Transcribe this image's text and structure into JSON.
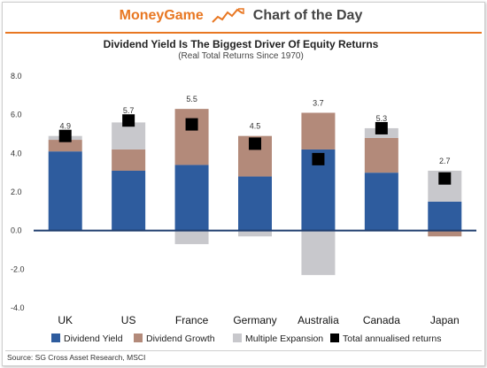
{
  "header": {
    "brand": "MoneyGame",
    "section": "Chart of the Day",
    "brand_color": "#e87722"
  },
  "source": "Source: SG Cross Asset Research, MSCI",
  "chart_data": {
    "type": "bar",
    "stacked": true,
    "title": "Dividend Yield Is The Biggest Driver Of Equity Returns",
    "subtitle": "(Real Total Returns Since 1970)",
    "categories": [
      "UK",
      "US",
      "France",
      "Germany",
      "Australia",
      "Canada",
      "Japan"
    ],
    "ylim": [
      -4.0,
      8.0
    ],
    "yticks": [
      "8.0",
      "6.0",
      "4.0",
      "2.0",
      "0.0",
      "-2.0",
      "-4.0"
    ],
    "grid": false,
    "legend_position": "bottom",
    "series": [
      {
        "name": "Dividend Yield",
        "color": "#2e5c9e",
        "values": [
          4.1,
          3.1,
          3.4,
          2.8,
          4.2,
          3.0,
          1.5
        ]
      },
      {
        "name": "Dividend Growth",
        "color": "#b38a7a",
        "values": [
          0.6,
          1.1,
          2.9,
          2.1,
          1.9,
          1.8,
          -0.3
        ]
      },
      {
        "name": "Multiple Expansion",
        "color": "#c8c8cc",
        "values": [
          0.2,
          1.4,
          -0.7,
          -0.3,
          -2.3,
          0.5,
          1.6
        ]
      }
    ],
    "markers": {
      "name": "Total annualised returns",
      "color": "#000000",
      "values": [
        4.9,
        5.7,
        5.5,
        4.5,
        3.7,
        5.3,
        2.7
      ],
      "labels": [
        "4.9",
        "5.7",
        "5.5",
        "4.5",
        "3.7",
        "5.3",
        "2.7"
      ]
    }
  }
}
